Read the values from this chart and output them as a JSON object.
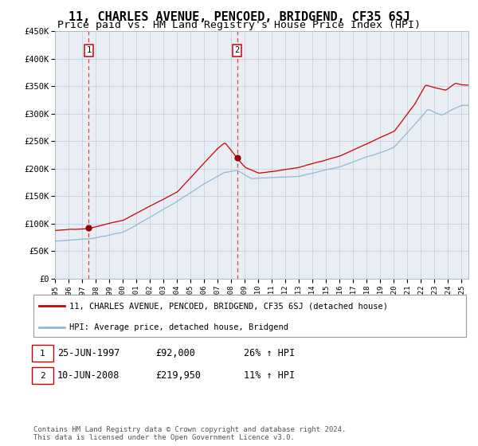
{
  "title": "11, CHARLES AVENUE, PENCOED, BRIDGEND, CF35 6SJ",
  "subtitle": "Price paid vs. HM Land Registry's House Price Index (HPI)",
  "legend_line1": "11, CHARLES AVENUE, PENCOED, BRIDGEND, CF35 6SJ (detached house)",
  "legend_line2": "HPI: Average price, detached house, Bridgend",
  "annotation1_date": "25-JUN-1997",
  "annotation1_price": "£92,000",
  "annotation1_hpi": "26% ↑ HPI",
  "annotation2_date": "10-JUN-2008",
  "annotation2_price": "£219,950",
  "annotation2_hpi": "11% ↑ HPI",
  "footer": "Contains HM Land Registry data © Crown copyright and database right 2024.\nThis data is licensed under the Open Government Licence v3.0.",
  "sale1_year": 1997.49,
  "sale1_value": 92000,
  "sale2_year": 2008.44,
  "sale2_value": 219950,
  "xmin": 1995,
  "xmax": 2025.5,
  "ymin": 0,
  "ymax": 450000,
  "yticks": [
    0,
    50000,
    100000,
    150000,
    200000,
    250000,
    300000,
    350000,
    400000,
    450000
  ],
  "ytick_labels": [
    "£0",
    "£50K",
    "£100K",
    "£150K",
    "£200K",
    "£250K",
    "£300K",
    "£350K",
    "£400K",
    "£450K"
  ],
  "hpi_color": "#90B8D4",
  "price_color": "#CC0000",
  "marker_color": "#990000",
  "dashed_line_color": "#DD4444",
  "bg_color": "#E8EEF4",
  "grid_color": "#C8D0DC",
  "title_fontsize": 11,
  "subtitle_fontsize": 9.5
}
